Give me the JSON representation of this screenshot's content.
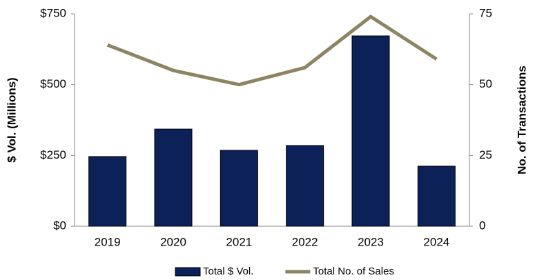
{
  "chart_data": {
    "type": "bar-line",
    "categories": [
      "2019",
      "2020",
      "2021",
      "2022",
      "2023",
      "2024"
    ],
    "series": [
      {
        "name": "Total $ Vol.",
        "type": "bar",
        "color": "#0d2159",
        "values": [
          246,
          343,
          268,
          285,
          672,
          212
        ]
      },
      {
        "name": "Total No. of Sales",
        "type": "line",
        "axis": "y2",
        "color": "#8c8462",
        "values": [
          64,
          55,
          50,
          56,
          74,
          59
        ]
      }
    ],
    "ylabel": "$ Vol. (Millions)",
    "y2label": "No. of Transactions",
    "ylim": [
      0,
      750
    ],
    "yticks": [
      {
        "value": 0,
        "label": "$0"
      },
      {
        "value": 250,
        "label": "$250"
      },
      {
        "value": 500,
        "label": "$500"
      },
      {
        "value": 750,
        "label": "$750"
      }
    ],
    "y2lim": [
      0,
      75
    ],
    "y2ticks": [
      0,
      25,
      50,
      75
    ],
    "legend": "bottom"
  }
}
